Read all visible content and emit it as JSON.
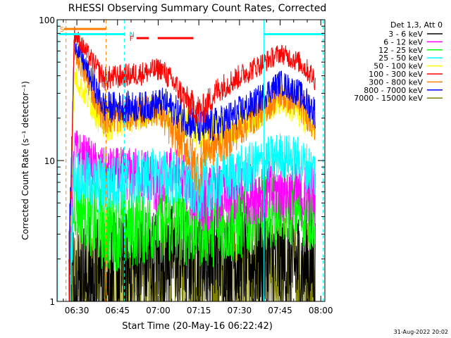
{
  "chart_data": {
    "type": "line",
    "title": "RHESSI Observing Summary Count Rates, Corrected",
    "xlabel": "Start Time (20-May-16 06:22:42)",
    "ylabel": "Corrected Count Rate (s⁻¹ detector⁻¹)",
    "yscale": "log",
    "ylim": [
      1,
      100
    ],
    "xlim_minutes": [
      22.7,
      121.5
    ],
    "x_ticks": [
      {
        "m": 30,
        "label": "06:30"
      },
      {
        "m": 45,
        "label": "06:45"
      },
      {
        "m": 60,
        "label": "07:00"
      },
      {
        "m": 75,
        "label": "07:15"
      },
      {
        "m": 90,
        "label": "07:30"
      },
      {
        "m": 105,
        "label": "07:45"
      },
      {
        "m": 120,
        "label": "08:00"
      }
    ],
    "y_ticks": [
      {
        "v": 1,
        "label": "1"
      },
      {
        "v": 10,
        "label": "10"
      },
      {
        "v": 100,
        "label": "100"
      }
    ],
    "grid": false,
    "legend_title": "Det 1,3, Att 0",
    "legend_position": "top-right",
    "series": [
      {
        "name": "3 - 6 keV",
        "color": "#000000",
        "key": [
          [
            27,
            1
          ],
          [
            29,
            1.4
          ],
          [
            40,
            1.5
          ],
          [
            64,
            2.1
          ],
          [
            75,
            2.1
          ],
          [
            82,
            2.0
          ],
          [
            93,
            2.0
          ],
          [
            108,
            1.8
          ],
          [
            118,
            1.8
          ]
        ]
      },
      {
        "name": "6 - 12 keV",
        "color": "#ff00ff",
        "key": [
          [
            27,
            1
          ],
          [
            29,
            12
          ],
          [
            40,
            8.0
          ],
          [
            57,
            8.0
          ],
          [
            60,
            6.0
          ],
          [
            65,
            8.5
          ],
          [
            70,
            7.0
          ],
          [
            75,
            5.2
          ],
          [
            80,
            5.5
          ],
          [
            90,
            5.8
          ],
          [
            100,
            6.0
          ],
          [
            110,
            5.8
          ],
          [
            118,
            5.6
          ]
        ]
      },
      {
        "name": "12 - 25 keV",
        "color": "#00ff00",
        "key": [
          [
            27,
            1
          ],
          [
            29,
            5
          ],
          [
            40,
            3.2
          ],
          [
            60,
            3.6
          ],
          [
            75,
            3.4
          ],
          [
            85,
            3.5
          ],
          [
            95,
            4.0
          ],
          [
            105,
            4.6
          ],
          [
            118,
            4.2
          ]
        ]
      },
      {
        "name": "25 - 50 keV",
        "color": "#00ffff",
        "key": [
          [
            27,
            1
          ],
          [
            29,
            8
          ],
          [
            40,
            6.5
          ],
          [
            60,
            8.0
          ],
          [
            70,
            7.0
          ],
          [
            76,
            6.2
          ],
          [
            85,
            7.5
          ],
          [
            95,
            9.0
          ],
          [
            105,
            11
          ],
          [
            112,
            10
          ],
          [
            118,
            8.0
          ]
        ]
      },
      {
        "name": "50 - 100 keV",
        "color": "#ffff00",
        "key": [
          [
            27,
            1
          ],
          [
            29,
            40
          ],
          [
            40,
            18
          ],
          [
            55,
            22
          ],
          [
            60,
            23
          ],
          [
            70,
            19
          ],
          [
            78,
            14
          ],
          [
            82,
            16
          ],
          [
            95,
            20
          ],
          [
            105,
            27
          ],
          [
            112,
            22
          ],
          [
            118,
            18
          ]
        ]
      },
      {
        "name": "100 - 300 keV",
        "color": "#ff0000",
        "key": [
          [
            27,
            1
          ],
          [
            29,
            80
          ],
          [
            40,
            38
          ],
          [
            55,
            42
          ],
          [
            61,
            45
          ],
          [
            66,
            35
          ],
          [
            71,
            26
          ],
          [
            76,
            22
          ],
          [
            82,
            32
          ],
          [
            95,
            45
          ],
          [
            105,
            58
          ],
          [
            112,
            50
          ],
          [
            118,
            38
          ]
        ]
      },
      {
        "name": "300 - 800 keV",
        "color": "#ff8000",
        "key": [
          [
            27,
            1
          ],
          [
            29,
            60
          ],
          [
            40,
            20
          ],
          [
            55,
            22
          ],
          [
            60,
            23
          ],
          [
            65,
            16
          ],
          [
            70,
            13
          ],
          [
            75,
            8
          ],
          [
            77,
            12
          ],
          [
            85,
            14
          ],
          [
            95,
            20
          ],
          [
            105,
            29
          ],
          [
            112,
            25
          ],
          [
            118,
            18
          ]
        ]
      },
      {
        "name": "800 - 7000 keV",
        "color": "#0000ff",
        "key": [
          [
            27,
            1
          ],
          [
            29,
            70
          ],
          [
            40,
            24
          ],
          [
            55,
            24
          ],
          [
            62,
            26
          ],
          [
            70,
            20
          ],
          [
            75,
            17
          ],
          [
            82,
            18
          ],
          [
            95,
            25
          ],
          [
            105,
            36
          ],
          [
            112,
            30
          ],
          [
            118,
            22
          ]
        ]
      },
      {
        "name": "7000 - 15000 keV",
        "color": "#808000",
        "key": [
          [
            27,
            1
          ],
          [
            30,
            1.3
          ],
          [
            40,
            1.3
          ],
          [
            80,
            1.5
          ],
          [
            90,
            1.4
          ],
          [
            110,
            1.5
          ],
          [
            118,
            1.4
          ]
        ]
      }
    ],
    "annotations": {
      "orange_bar": {
        "x": [
          25.2,
          40.8
        ],
        "y": 86,
        "color": "#ff8000",
        "letter": "S"
      },
      "cyan_bar_left": {
        "x": [
          23.5,
          47.8
        ],
        "y": 79,
        "color": "#00ffff",
        "letter": "N"
      },
      "red_bars": {
        "segments": [
          [
            52,
            56.5
          ],
          [
            59.8,
            73
          ]
        ],
        "y": 74,
        "color": "#ff0000",
        "letter": "F"
      },
      "cyan_bar_right": {
        "x": [
          99,
          120.8
        ],
        "y": 79,
        "color": "#00ffff"
      },
      "orange_dashed_lines": [
        26,
        40.8
      ],
      "cyan_solid_lines": [
        22.9,
        99
      ],
      "cyan_dashed_lines": [
        47.5,
        120.8
      ]
    }
  },
  "footer_date": "31-Aug-2022 20:02"
}
